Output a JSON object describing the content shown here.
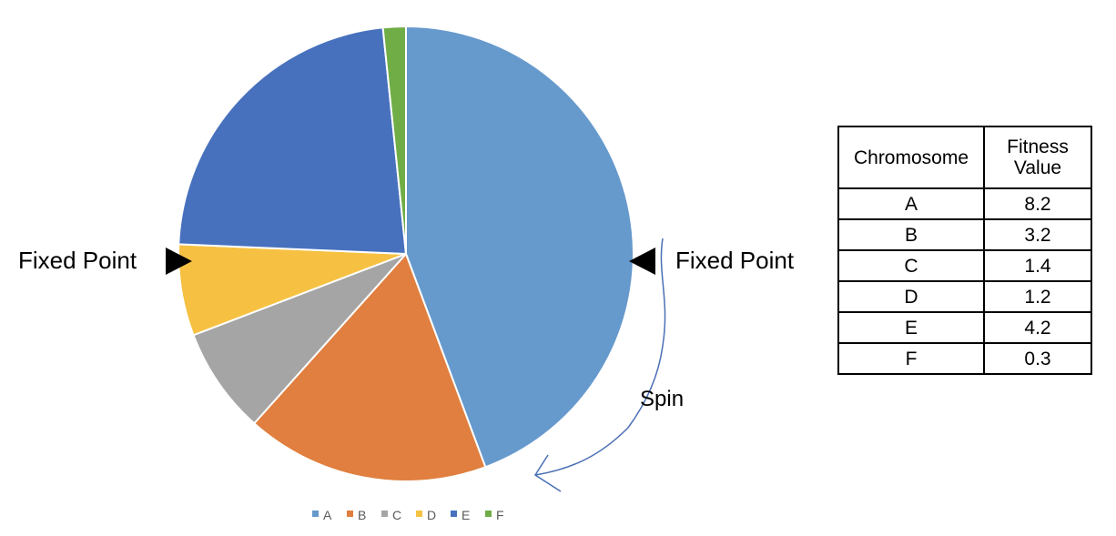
{
  "chart_data": {
    "type": "pie",
    "categories": [
      "A",
      "B",
      "C",
      "D",
      "E",
      "F"
    ],
    "values": [
      8.2,
      3.2,
      1.4,
      1.2,
      4.2,
      0.3
    ],
    "colors": [
      "#6699cc",
      "#e07f3f",
      "#a5a5a5",
      "#f6c142",
      "#4771bd",
      "#70ad47"
    ],
    "legend_position": "bottom",
    "start_angle_deg": 0,
    "direction": "clockwise"
  },
  "annotations": {
    "left_marker": "Fixed Point",
    "right_marker": "Fixed Point",
    "spin": "Spin"
  },
  "table": {
    "headers": [
      "Chromosome",
      "Fitness Value"
    ],
    "rows": [
      [
        "A",
        "8.2"
      ],
      [
        "B",
        "3.2"
      ],
      [
        "C",
        "1.4"
      ],
      [
        "D",
        "1.2"
      ],
      [
        "E",
        "4.2"
      ],
      [
        "F",
        "0.3"
      ]
    ]
  }
}
